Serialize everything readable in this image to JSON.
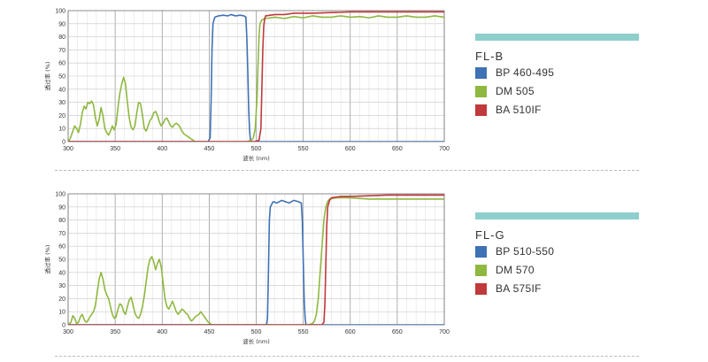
{
  "separator_color": "#bbbbbb",
  "legend_bar_color": "#8ecfce",
  "chart_data": [
    {
      "type": "line",
      "title": "",
      "xlabel": "波长 (nm)",
      "ylabel": "透过率 (%)",
      "xlim": [
        300,
        700
      ],
      "ylim": [
        0,
        100
      ],
      "xticks": [
        300,
        350,
        400,
        450,
        500,
        550,
        600,
        650,
        700
      ],
      "yticks": [
        0,
        10,
        20,
        30,
        40,
        50,
        60,
        70,
        80,
        90,
        100
      ],
      "grid": true,
      "legend": {
        "title": "FL-B",
        "placement": "right",
        "items": [
          {
            "label": "BP 460-495",
            "color": "#3f72b5"
          },
          {
            "label": "DM 505",
            "color": "#8fb840"
          },
          {
            "label": "BA 510IF",
            "color": "#c0393b"
          }
        ]
      },
      "series": [
        {
          "name": "BP 460-495",
          "color": "#3f72b5",
          "points": [
            [
              300,
              0
            ],
            [
              449,
              0
            ],
            [
              451,
              3
            ],
            [
              452,
              30
            ],
            [
              453,
              70
            ],
            [
              454,
              90
            ],
            [
              456,
              95
            ],
            [
              460,
              96
            ],
            [
              465,
              96.5
            ],
            [
              470,
              96
            ],
            [
              473,
              97
            ],
            [
              478,
              96
            ],
            [
              483,
              96.5
            ],
            [
              487,
              96
            ],
            [
              489,
              95
            ],
            [
              490,
              80
            ],
            [
              491,
              55
            ],
            [
              492,
              25
            ],
            [
              493,
              8
            ],
            [
              494,
              0
            ],
            [
              700,
              0
            ]
          ]
        },
        {
          "name": "DM 505",
          "color": "#8fb840",
          "points": [
            [
              300,
              0
            ],
            [
              302,
              2
            ],
            [
              305,
              8
            ],
            [
              307,
              12
            ],
            [
              309,
              10
            ],
            [
              311,
              7
            ],
            [
              313,
              13
            ],
            [
              315,
              22
            ],
            [
              317,
              27
            ],
            [
              319,
              25
            ],
            [
              321,
              30
            ],
            [
              323,
              29
            ],
            [
              325,
              31
            ],
            [
              327,
              28
            ],
            [
              329,
              18
            ],
            [
              331,
              12
            ],
            [
              333,
              17
            ],
            [
              335,
              26
            ],
            [
              337,
              20
            ],
            [
              339,
              10
            ],
            [
              341,
              7
            ],
            [
              343,
              5
            ],
            [
              345,
              8
            ],
            [
              347,
              12
            ],
            [
              349,
              9
            ],
            [
              351,
              13
            ],
            [
              353,
              26
            ],
            [
              355,
              37
            ],
            [
              357,
              44
            ],
            [
              359,
              49
            ],
            [
              361,
              44
            ],
            [
              363,
              30
            ],
            [
              365,
              18
            ],
            [
              367,
              11
            ],
            [
              369,
              9
            ],
            [
              371,
              12
            ],
            [
              373,
              22
            ],
            [
              375,
              30
            ],
            [
              377,
              29
            ],
            [
              379,
              20
            ],
            [
              381,
              10
            ],
            [
              383,
              8
            ],
            [
              385,
              12
            ],
            [
              387,
              16
            ],
            [
              389,
              18
            ],
            [
              391,
              22
            ],
            [
              393,
              23
            ],
            [
              395,
              20
            ],
            [
              397,
              15
            ],
            [
              399,
              12
            ],
            [
              401,
              14
            ],
            [
              403,
              17
            ],
            [
              405,
              18
            ],
            [
              407,
              15
            ],
            [
              409,
              12
            ],
            [
              411,
              11
            ],
            [
              413,
              13
            ],
            [
              415,
              14
            ],
            [
              417,
              13
            ],
            [
              419,
              11
            ],
            [
              421,
              8
            ],
            [
              423,
              6
            ],
            [
              425,
              5
            ],
            [
              427,
              4
            ],
            [
              429,
              3
            ],
            [
              431,
              2
            ],
            [
              433,
              1
            ],
            [
              435,
              0
            ],
            [
              480,
              0
            ],
            [
              490,
              0
            ],
            [
              495,
              1
            ],
            [
              497,
              3
            ],
            [
              499,
              10
            ],
            [
              501,
              35
            ],
            [
              502,
              60
            ],
            [
              503,
              80
            ],
            [
              504,
              90
            ],
            [
              506,
              93
            ],
            [
              510,
              94
            ],
            [
              520,
              95
            ],
            [
              530,
              94
            ],
            [
              540,
              95.5
            ],
            [
              550,
              94.5
            ],
            [
              560,
              96
            ],
            [
              570,
              95
            ],
            [
              580,
              95
            ],
            [
              590,
              96
            ],
            [
              600,
              95
            ],
            [
              610,
              95.5
            ],
            [
              620,
              94.5
            ],
            [
              630,
              96
            ],
            [
              640,
              95
            ],
            [
              650,
              95
            ],
            [
              660,
              96
            ],
            [
              670,
              95
            ],
            [
              680,
              95
            ],
            [
              690,
              96
            ],
            [
              700,
              95
            ]
          ]
        },
        {
          "name": "BA 510IF",
          "color": "#c0393b",
          "points": [
            [
              300,
              0
            ],
            [
              498,
              0
            ],
            [
              503,
              1
            ],
            [
              505,
              10
            ],
            [
              506,
              40
            ],
            [
              507,
              70
            ],
            [
              508,
              88
            ],
            [
              509,
              94
            ],
            [
              510,
              96
            ],
            [
              520,
              97
            ],
            [
              530,
              97
            ],
            [
              540,
              98
            ],
            [
              560,
              98
            ],
            [
              580,
              98.5
            ],
            [
              600,
              99
            ],
            [
              650,
              99
            ],
            [
              700,
              99
            ]
          ]
        }
      ]
    },
    {
      "type": "line",
      "title": "",
      "xlabel": "波长 (nm)",
      "ylabel": "透过率 (%)",
      "xlim": [
        300,
        700
      ],
      "ylim": [
        0,
        100
      ],
      "xticks": [
        300,
        350,
        400,
        450,
        500,
        550,
        600,
        650,
        700
      ],
      "yticks": [
        0,
        10,
        20,
        30,
        40,
        50,
        60,
        70,
        80,
        90,
        100
      ],
      "grid": true,
      "legend": {
        "title": "FL-G",
        "placement": "right",
        "items": [
          {
            "label": "BP 510-550",
            "color": "#3f72b5"
          },
          {
            "label": "DM 570",
            "color": "#8fb840"
          },
          {
            "label": "BA 575IF",
            "color": "#c0393b"
          }
        ]
      },
      "series": [
        {
          "name": "BP 510-550",
          "color": "#3f72b5",
          "points": [
            [
              300,
              0
            ],
            [
              511,
              0
            ],
            [
              512,
              5
            ],
            [
              513,
              40
            ],
            [
              514,
              80
            ],
            [
              515,
              90
            ],
            [
              518,
              94
            ],
            [
              522,
              93
            ],
            [
              527,
              95
            ],
            [
              531,
              94
            ],
            [
              535,
              93
            ],
            [
              540,
              95
            ],
            [
              545,
              94
            ],
            [
              548,
              93
            ],
            [
              549,
              80
            ],
            [
              550,
              50
            ],
            [
              551,
              20
            ],
            [
              552,
              5
            ],
            [
              553,
              0
            ],
            [
              700,
              0
            ]
          ]
        },
        {
          "name": "DM 570",
          "color": "#8fb840",
          "points": [
            [
              300,
              0
            ],
            [
              303,
              2
            ],
            [
              305,
              7
            ],
            [
              307,
              5
            ],
            [
              309,
              1
            ],
            [
              311,
              2
            ],
            [
              313,
              6
            ],
            [
              315,
              8
            ],
            [
              317,
              4
            ],
            [
              319,
              2
            ],
            [
              321,
              3
            ],
            [
              323,
              6
            ],
            [
              325,
              8
            ],
            [
              327,
              10
            ],
            [
              329,
              15
            ],
            [
              331,
              25
            ],
            [
              333,
              35
            ],
            [
              335,
              40
            ],
            [
              337,
              35
            ],
            [
              339,
              27
            ],
            [
              341,
              23
            ],
            [
              343,
              20
            ],
            [
              345,
              14
            ],
            [
              347,
              8
            ],
            [
              349,
              5
            ],
            [
              351,
              6
            ],
            [
              353,
              12
            ],
            [
              355,
              16
            ],
            [
              357,
              15
            ],
            [
              359,
              10
            ],
            [
              361,
              8
            ],
            [
              363,
              14
            ],
            [
              365,
              19
            ],
            [
              367,
              21
            ],
            [
              369,
              15
            ],
            [
              371,
              9
            ],
            [
              373,
              6
            ],
            [
              375,
              5
            ],
            [
              377,
              8
            ],
            [
              379,
              14
            ],
            [
              381,
              22
            ],
            [
              383,
              33
            ],
            [
              385,
              44
            ],
            [
              387,
              50
            ],
            [
              389,
              52
            ],
            [
              391,
              48
            ],
            [
              393,
              42
            ],
            [
              395,
              47
            ],
            [
              397,
              50
            ],
            [
              399,
              44
            ],
            [
              401,
              32
            ],
            [
              403,
              20
            ],
            [
              405,
              14
            ],
            [
              407,
              12
            ],
            [
              409,
              15
            ],
            [
              411,
              18
            ],
            [
              413,
              14
            ],
            [
              415,
              10
            ],
            [
              417,
              8
            ],
            [
              419,
              10
            ],
            [
              421,
              12
            ],
            [
              423,
              11
            ],
            [
              425,
              9
            ],
            [
              427,
              8
            ],
            [
              429,
              5
            ],
            [
              431,
              3
            ],
            [
              433,
              4
            ],
            [
              435,
              6
            ],
            [
              437,
              7
            ],
            [
              439,
              8
            ],
            [
              441,
              10
            ],
            [
              443,
              8
            ],
            [
              445,
              6
            ],
            [
              447,
              4
            ],
            [
              449,
              2
            ],
            [
              451,
              1
            ],
            [
              453,
              0
            ],
            [
              555,
              0
            ],
            [
              560,
              1
            ],
            [
              562,
              3
            ],
            [
              564,
              8
            ],
            [
              566,
              20
            ],
            [
              568,
              40
            ],
            [
              570,
              60
            ],
            [
              572,
              80
            ],
            [
              574,
              90
            ],
            [
              576,
              94
            ],
            [
              578,
              96
            ],
            [
              585,
              97
            ],
            [
              600,
              97
            ],
            [
              620,
              96
            ],
            [
              640,
              96
            ],
            [
              660,
              96
            ],
            [
              680,
              96
            ],
            [
              700,
              96
            ]
          ]
        },
        {
          "name": "BA 575IF",
          "color": "#c0393b",
          "points": [
            [
              300,
              0
            ],
            [
              570,
              0
            ],
            [
              572,
              2
            ],
            [
              573,
              15
            ],
            [
              574,
              45
            ],
            [
              575,
              75
            ],
            [
              576,
              90
            ],
            [
              578,
              95
            ],
            [
              580,
              97
            ],
            [
              590,
              98
            ],
            [
              600,
              98
            ],
            [
              620,
              98.5
            ],
            [
              640,
              99
            ],
            [
              660,
              99
            ],
            [
              700,
              99
            ]
          ]
        }
      ]
    }
  ]
}
